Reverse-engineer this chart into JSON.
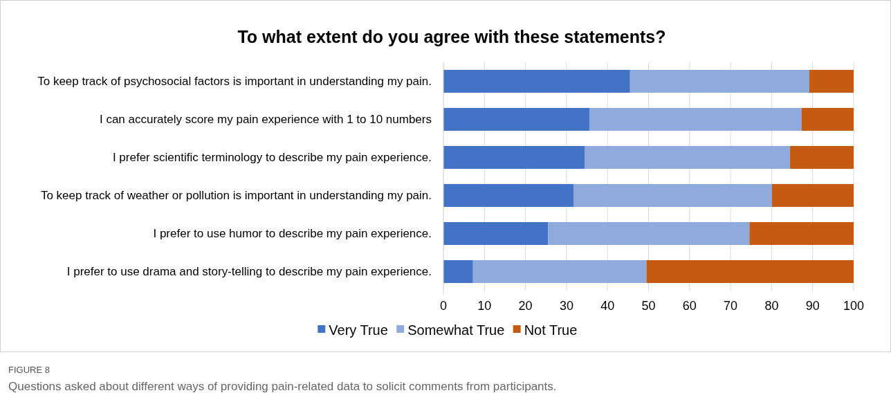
{
  "chart_data": {
    "type": "bar",
    "orientation": "horizontal",
    "stacked": true,
    "title": "To what extent do you agree with these statements?",
    "categories": [
      "To keep track of psychosocial factors is important in understanding my pain.",
      "I can accurately score my pain experience with 1 to 10 numbers",
      "I prefer scientific terminology to describe my pain experience.",
      "To keep track of weather or pollution is important in understanding my pain.",
      "I prefer to use humor to describe my pain experience.",
      "I prefer to use drama and story-telling to describe my pain experience."
    ],
    "series": [
      {
        "name": "Very True",
        "color": "#4472c4",
        "values": [
          45.5,
          35.6,
          34.5,
          31.7,
          25.5,
          7.2
        ]
      },
      {
        "name": "Somewhat True",
        "color": "#8faadc",
        "values": [
          43.7,
          51.7,
          50.0,
          48.4,
          49.1,
          42.3
        ]
      },
      {
        "name": "Not True",
        "color": "#c55a11",
        "values": [
          10.8,
          12.7,
          15.5,
          19.9,
          25.4,
          50.5
        ]
      }
    ],
    "xlim": [
      0,
      100
    ],
    "xticks": [
      0,
      10,
      20,
      30,
      40,
      50,
      60,
      70,
      80,
      90,
      100
    ],
    "grid": "x",
    "legend": "bottom",
    "annotations": [
      "FIGURE 8",
      "Questions asked about different ways of providing pain-related data to solicit comments from participants."
    ]
  }
}
